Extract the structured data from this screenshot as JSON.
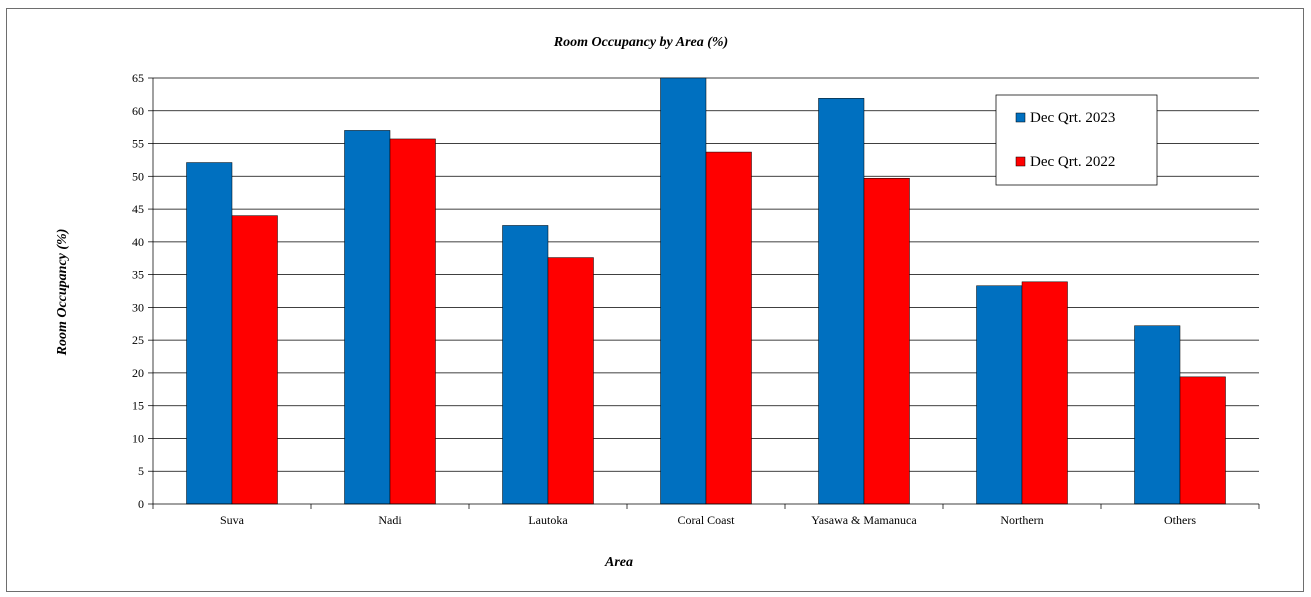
{
  "chart_data": {
    "type": "bar",
    "title": "Room Occupancy by Area (%)",
    "xlabel": "Area",
    "ylabel": "Room Occupancy (%)",
    "categories": [
      "Suva",
      "Nadi",
      "Lautoka",
      "Coral Coast",
      "Yasawa & Mamanuca",
      "Northern",
      "Others"
    ],
    "series": [
      {
        "name": "Dec Qrt. 2023",
        "color": "#0070C0",
        "values": [
          52.1,
          57.0,
          42.5,
          65.0,
          61.9,
          33.3,
          27.2
        ]
      },
      {
        "name": "Dec Qrt. 2022",
        "color": "#FF0000",
        "values": [
          44.0,
          55.7,
          37.6,
          53.7,
          49.7,
          33.9,
          19.4
        ]
      }
    ],
    "ylim": [
      0,
      65
    ],
    "yticks": [
      0,
      5,
      10,
      15,
      20,
      25,
      30,
      35,
      40,
      45,
      50,
      55,
      60,
      65
    ],
    "grid": true,
    "legend_position": "top-right"
  }
}
